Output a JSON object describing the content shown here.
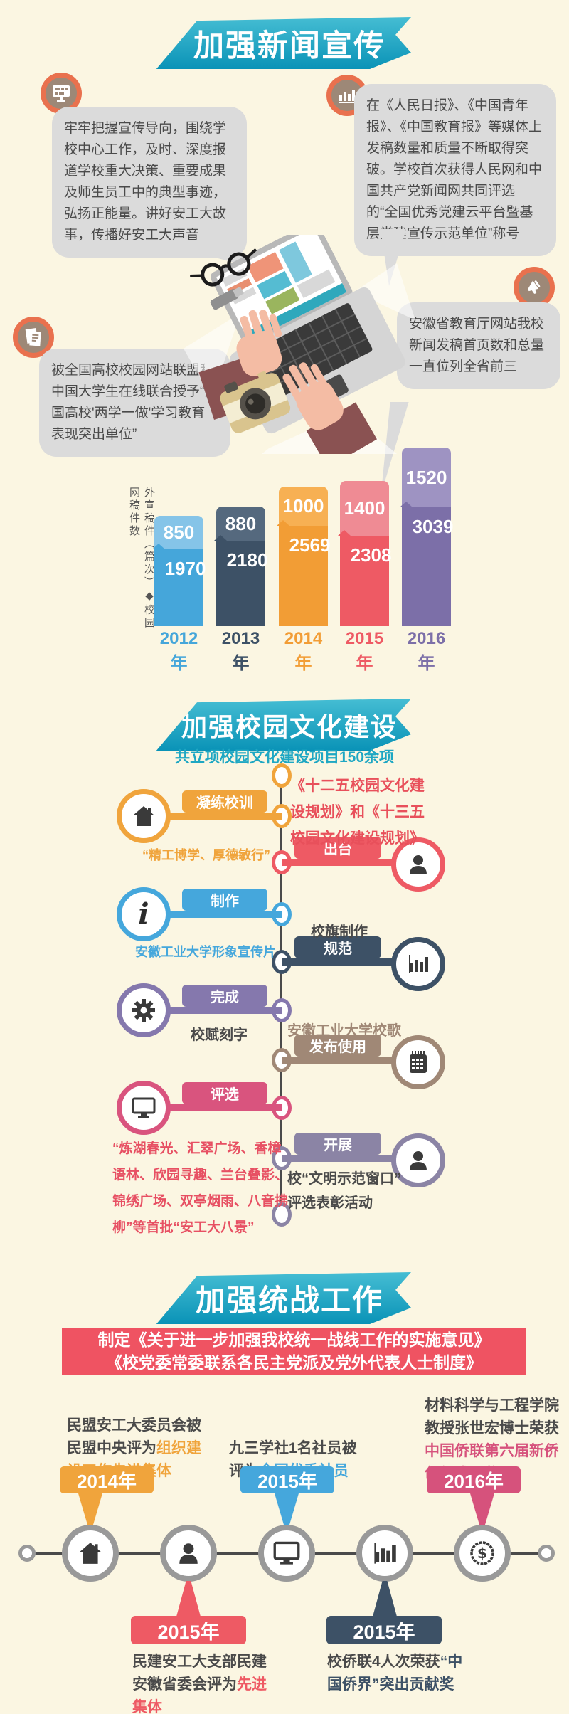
{
  "page_bg": "#fbf6e2",
  "section_news": {
    "banner": "加强新闻宣传",
    "bubble_propaganda": "牢牢把握宣传导向，围绕学校中心工作，及时、深度报道学校重大决策、重要成果及师生员工中的典型事迹，弘扬正能量。讲好安工大故事，传播好安工大声音",
    "bubble_media": "在《人民日报》、《中国青年报》、《中国教育报》等媒体上发稿数量和质量不断取得突破。学校首次获得人民网和中国共产党新闻网共同评选的“全国优秀党建云平台暨基层党建宣传示范单位”称号",
    "bubble_award": "被全国高校校园网站联盟和中国大学生在线联合授予“全国高校'两学一做'学习教育表现突出单位”",
    "bubble_ranking": "安徽省教育厅网站我校新闻发稿首页数和总量一直位列全省前三",
    "icons": [
      "monitor-grid-icon",
      "bar-chart-icon",
      "documents-icon",
      "megaphone-icon"
    ]
  },
  "chart_data": {
    "type": "bar",
    "stacked": true,
    "categories": [
      "2012年",
      "2013年",
      "2014年",
      "2015年",
      "2016年"
    ],
    "series": [
      {
        "name": "外宣稿件（篇次）",
        "values": [
          850,
          880,
          1000,
          1400,
          1520
        ]
      },
      {
        "name": "校园网稿件数",
        "values": [
          1970,
          2180,
          2569,
          2308,
          3039
        ]
      }
    ],
    "axis_label": "外宣稿件（篇次）◆校园网稿件数",
    "legend_position": "left-vertical",
    "grid": false,
    "bar_colors_top": [
      "#85c4e8",
      "#55697e",
      "#f7b053",
      "#ef8b94",
      "#9e93c2"
    ],
    "bar_colors_bottom": [
      "#45a6da",
      "#3d5166",
      "#f29d35",
      "#ee5a64",
      "#7c6fa8"
    ],
    "label_colors": [
      "#45a6da",
      "#3d5166",
      "#f29d35",
      "#ee5a64",
      "#7c6fa8"
    ]
  },
  "section_culture": {
    "banner": "加强校园文化建设",
    "subtitle": "共立项校园文化建设项目150余项",
    "items": [
      {
        "pill": "凝练校训",
        "color": "#f0a43c",
        "icon": "house-icon",
        "note": "“精工博学、厚德敏行”",
        "note_color": "#f0a43c"
      },
      {
        "pill": "出台",
        "color": "#ee5a64",
        "icon": "person-icon",
        "note": "《十二五校园文化建\n设规划》和《十三五\n校园文化建设规划》",
        "note_color": "#e8505b"
      },
      {
        "pill": "制作",
        "color": "#45a7dc",
        "icon": "info-icon",
        "note": "安徽工业大学形象宣传片",
        "note_color": "#45a7dc"
      },
      {
        "pill": "规范",
        "color": "#3d5166",
        "icon": "bar-chart-icon",
        "note": "校旗制作",
        "note_color": "#4a4a4a"
      },
      {
        "pill": "完成",
        "color": "#8578ad",
        "icon": "gear-icon",
        "note": "校赋刻字",
        "note_color": "#4a4a4a"
      },
      {
        "pill": "发布使用",
        "color": "#a08876",
        "icon": "calendar-icon",
        "note": "安徽工业大学校歌",
        "note_color": "#a08876"
      },
      {
        "pill": "评选",
        "color": "#d9547e",
        "icon": "monitor-icon",
        "note": "“炼湖春光、汇翠广场、香樟\n语林、欣园寻趣、兰台叠影、\n锦绣广场、双亭烟雨、八音拂\n柳”等首批“安工大八景”",
        "note_color": "#e75063"
      },
      {
        "pill": "开展",
        "color": "#8b84a5",
        "icon": "person-icon",
        "note": "校“文明示范窗口”\n评选表彰活动",
        "note_color": "#4a4a4a"
      }
    ]
  },
  "section_united": {
    "banner": "加强统战工作",
    "policy_line1": "制定《关于进一步加强我校统一战线工作的实施意见》",
    "policy_line2": "《校党委常委联系各民主党派及党外代表人士制度》",
    "milestones": [
      {
        "year": "2014年",
        "position": "top",
        "color": "#f0a43c",
        "icon": "house-icon",
        "text_plain": "民盟安工大委员会被民盟中央评为",
        "text_highlight": "组织建设工作先进集体"
      },
      {
        "year": "2015年",
        "position": "bottom",
        "color": "#ee5a64",
        "icon": "person-icon",
        "text_plain": "民建安工大支部民建安徽省委会评为",
        "text_highlight": "先进集体"
      },
      {
        "year": "2015年",
        "position": "top",
        "color": "#45a7dc",
        "icon": "monitor-icon",
        "text_plain": "九三学社1名社员被评为",
        "text_highlight": "全国优秀社员"
      },
      {
        "year": "2015年",
        "position": "bottom",
        "color": "#3d5166",
        "icon": "bar-chart-icon",
        "text_plain": "校侨联4人次荣获",
        "text_highlight": "“中国侨界”突出贡献奖"
      },
      {
        "year": "2016年",
        "position": "top",
        "color": "#d6527c",
        "icon": "dollar-icon",
        "text_plain": "材料科学与工程学院教授张世宏博士荣获",
        "text_highlight": "中国侨联第六届新侨创新成果奖"
      }
    ]
  }
}
